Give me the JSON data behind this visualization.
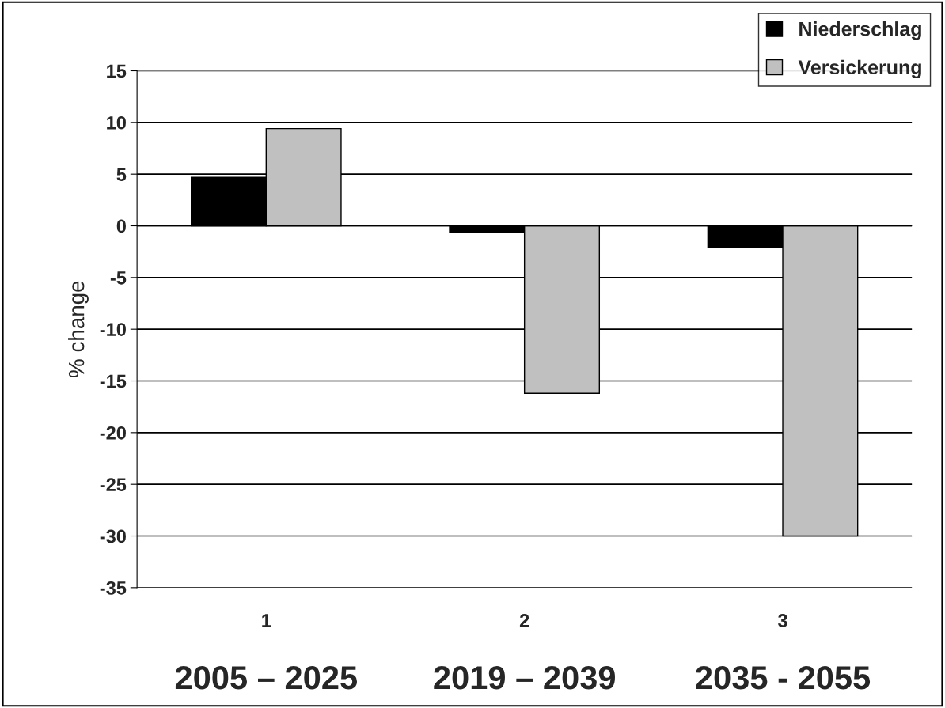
{
  "chart_data": {
    "type": "bar",
    "ylabel": "% change",
    "categories": [
      "1",
      "2",
      "3"
    ],
    "series": [
      {
        "name": "Niederschlag",
        "color": "#000000",
        "values": [
          4.7,
          -0.6,
          -2.1
        ]
      },
      {
        "name": "Versickerung",
        "color": "#c0c0c0",
        "values": [
          9.4,
          -16.2,
          -30.0
        ]
      }
    ],
    "ylim": [
      -35,
      15
    ],
    "yticks": [
      -35,
      -30,
      -25,
      -20,
      -15,
      -10,
      -5,
      0,
      5,
      10,
      15
    ],
    "grid": "y",
    "legend": "top right",
    "annotations": [
      "2005 – 2025",
      "2019 – 2039",
      "2035 - 2055"
    ]
  }
}
